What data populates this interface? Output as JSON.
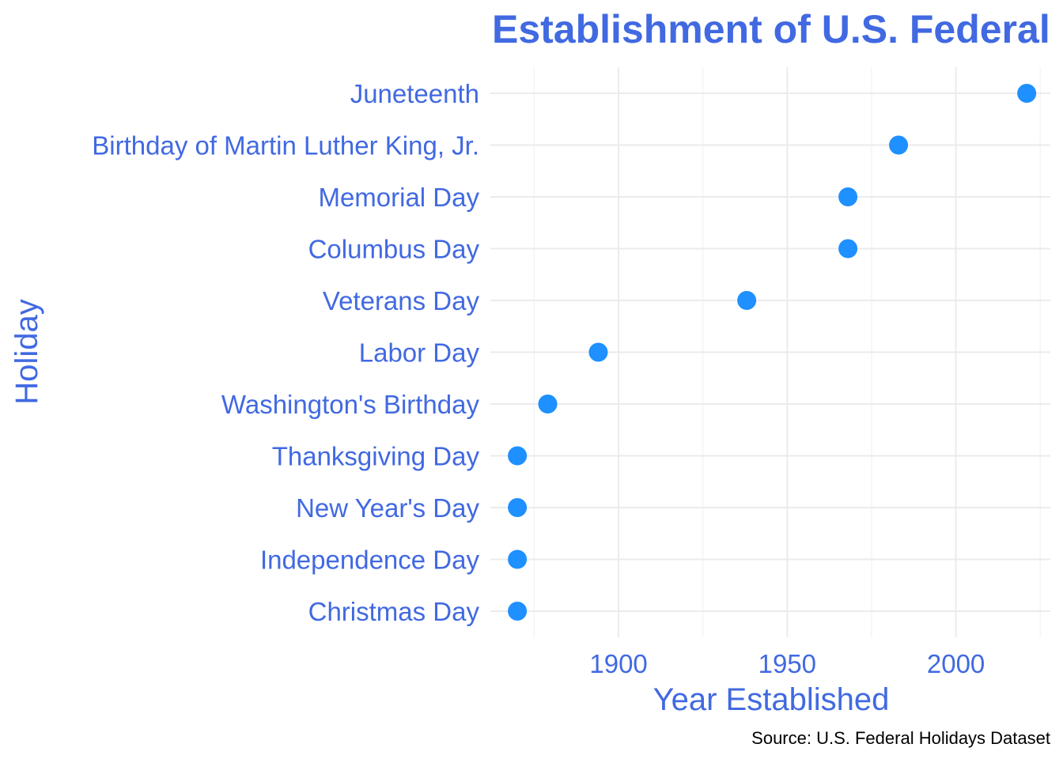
{
  "chart_data": {
    "type": "scatter",
    "title": "Establishment of U.S. Federal Holidays",
    "xlabel": "Year Established",
    "ylabel": "Holiday",
    "caption": "Source: U.S. Federal Holidays Dataset",
    "xlim": [
      1862,
      2028
    ],
    "x_major_ticks": [
      1900,
      1950,
      2000
    ],
    "x_minor_ticks": [
      1875,
      1925,
      1975,
      2025
    ],
    "grid": true,
    "legend": "none",
    "point_color": "#1E90FF",
    "text_color": "#4169E1",
    "points": [
      {
        "holiday": "Christmas Day",
        "year": 1870
      },
      {
        "holiday": "Independence Day",
        "year": 1870
      },
      {
        "holiday": "New Year's Day",
        "year": 1870
      },
      {
        "holiday": "Thanksgiving Day",
        "year": 1870
      },
      {
        "holiday": "Washington's Birthday",
        "year": 1879
      },
      {
        "holiday": "Labor Day",
        "year": 1894
      },
      {
        "holiday": "Veterans Day",
        "year": 1938
      },
      {
        "holiday": "Columbus Day",
        "year": 1968
      },
      {
        "holiday": "Memorial Day",
        "year": 1968
      },
      {
        "holiday": "Birthday of Martin Luther King, Jr.",
        "year": 1983
      },
      {
        "holiday": "Juneteenth",
        "year": 2021
      }
    ]
  }
}
